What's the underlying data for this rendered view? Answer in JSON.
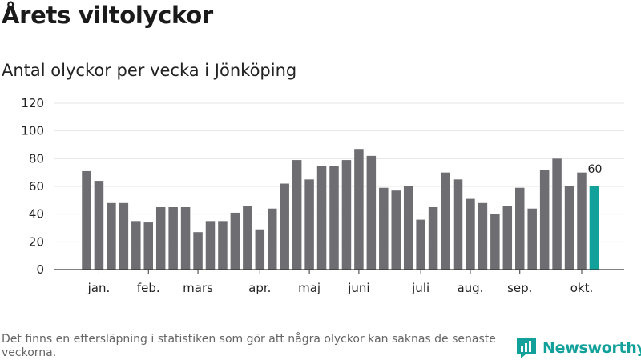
{
  "header": {
    "title": "Årets viltolyckor",
    "subtitle": "Antal olyckor per vecka i Jönköping"
  },
  "footer": {
    "note": "Det finns en eftersläpning i statistiken som gör att några olyckor kan saknas de senaste veckorna.",
    "brand": "Newsworthy"
  },
  "colors": {
    "bar": "#6e6d72",
    "highlight": "#12a19a",
    "grid": "#e6e6e6",
    "axis": "#333333"
  },
  "chart_data": {
    "type": "bar",
    "title": "Antal olyckor per vecka i Jönköping",
    "xlabel": "",
    "ylabel": "",
    "ylim": [
      0,
      120
    ],
    "yticks": [
      0,
      20,
      40,
      60,
      80,
      100,
      120
    ],
    "grid": true,
    "legend": "none",
    "x_tick_labels": [
      {
        "label": "jan.",
        "index": 1
      },
      {
        "label": "feb.",
        "index": 5
      },
      {
        "label": "mars",
        "index": 9
      },
      {
        "label": "apr.",
        "index": 14
      },
      {
        "label": "maj",
        "index": 18
      },
      {
        "label": "juni",
        "index": 22
      },
      {
        "label": "juli",
        "index": 27
      },
      {
        "label": "aug.",
        "index": 31
      },
      {
        "label": "sep.",
        "index": 35
      },
      {
        "label": "okt.",
        "index": 40
      }
    ],
    "values": [
      71,
      64,
      48,
      48,
      35,
      34,
      45,
      45,
      45,
      27,
      35,
      35,
      41,
      46,
      29,
      44,
      62,
      79,
      65,
      75,
      75,
      79,
      87,
      82,
      59,
      57,
      60,
      36,
      45,
      70,
      65,
      51,
      48,
      40,
      46,
      59,
      44,
      72,
      80,
      60,
      70,
      60
    ],
    "highlight_index": 41,
    "data_labels": [
      {
        "index": 41,
        "text": "60"
      }
    ]
  }
}
